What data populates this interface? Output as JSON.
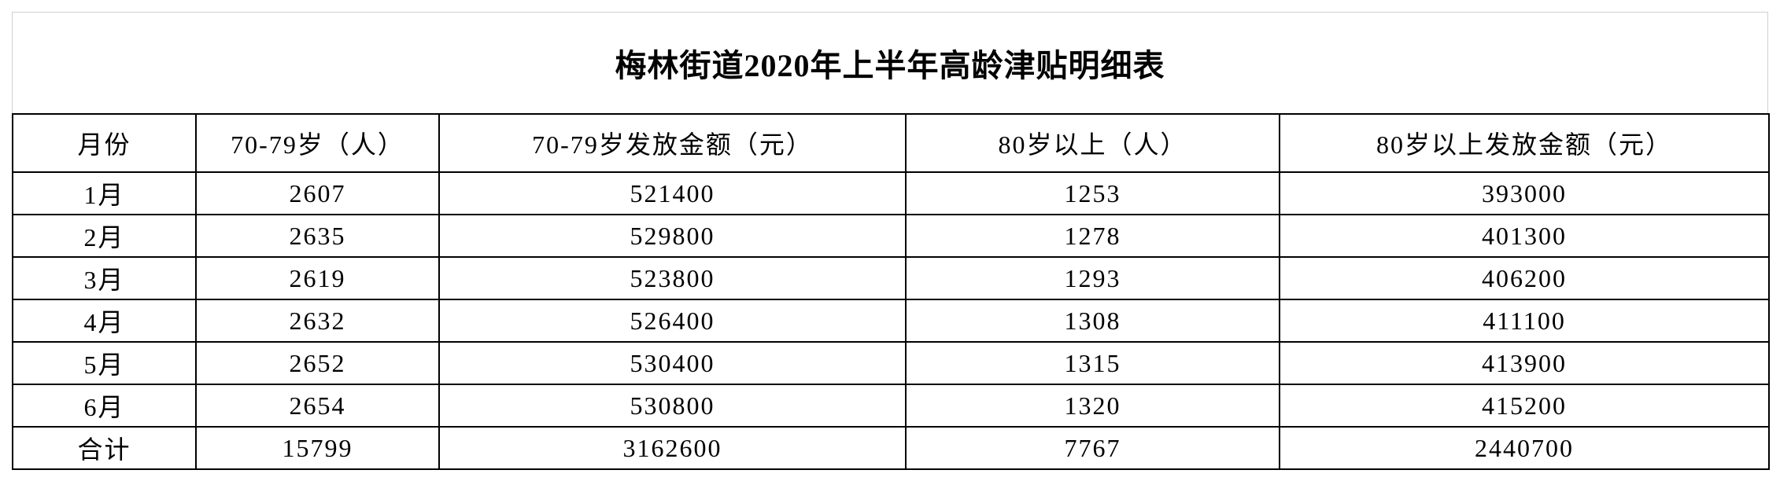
{
  "title": "梅林街道2020年上半年高龄津贴明细表",
  "table": {
    "headers": [
      "月份",
      "70-79岁（人）",
      "70-79岁发放金额（元）",
      "80岁以上（人）",
      "80岁以上发放金额（元）"
    ],
    "rows": [
      [
        "1月",
        "2607",
        "521400",
        "1253",
        "393000"
      ],
      [
        "2月",
        "2635",
        "529800",
        "1278",
        "401300"
      ],
      [
        "3月",
        "2619",
        "523800",
        "1293",
        "406200"
      ],
      [
        "4月",
        "2632",
        "526400",
        "1308",
        "411100"
      ],
      [
        "5月",
        "2652",
        "530400",
        "1315",
        "413900"
      ],
      [
        "6月",
        "2654",
        "530800",
        "1320",
        "415200"
      ],
      [
        "合计",
        "15799",
        "3162600",
        "7767",
        "2440700"
      ]
    ]
  }
}
